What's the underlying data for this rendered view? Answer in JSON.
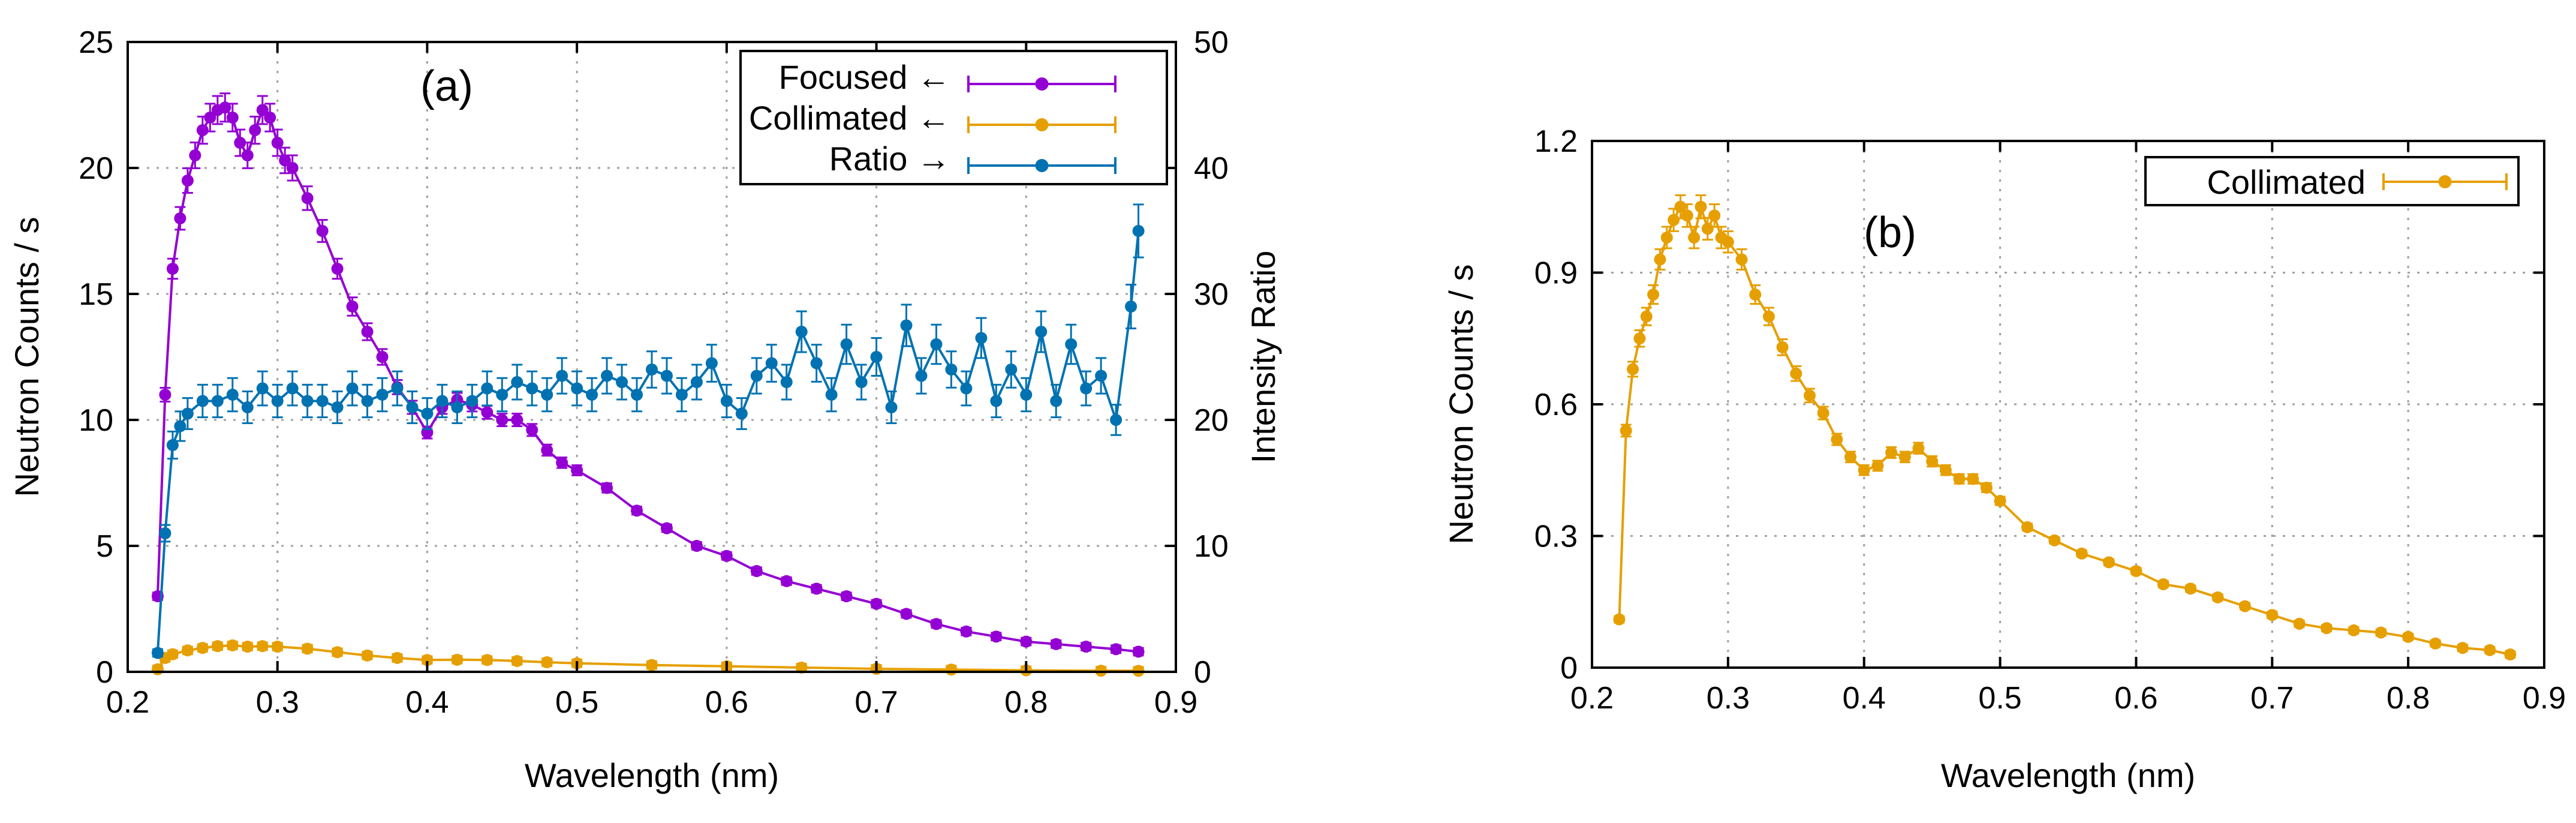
{
  "chart_data": [
    {
      "type": "line",
      "panel_label": "(a)",
      "xlabel": "Wavelength (nm)",
      "ylabel": "Neutron Counts / s",
      "y2label": "Intensity Ratio",
      "xlim": [
        0.2,
        0.9
      ],
      "ylim": [
        0,
        25
      ],
      "y2lim": [
        0,
        50
      ],
      "xticks": [
        "0.2",
        "0.3",
        "0.4",
        "0.5",
        "0.6",
        "0.7",
        "0.8",
        "0.9"
      ],
      "yticks": [
        "0",
        "5",
        "10",
        "15",
        "20",
        "25"
      ],
      "y2ticks": [
        "0",
        "10",
        "20",
        "30",
        "40",
        "50"
      ],
      "grid": true,
      "legend_position": "top-right",
      "colors": {
        "focused": "#9400d3",
        "collimated": "#e69f00",
        "ratio": "#0072b2"
      },
      "series": [
        {
          "name": "Focused ←",
          "axis": "left",
          "key": "focused",
          "x": [
            0.22,
            0.225,
            0.23,
            0.235,
            0.24,
            0.245,
            0.25,
            0.255,
            0.26,
            0.265,
            0.27,
            0.275,
            0.28,
            0.285,
            0.29,
            0.295,
            0.3,
            0.305,
            0.31,
            0.32,
            0.33,
            0.34,
            0.35,
            0.36,
            0.37,
            0.38,
            0.39,
            0.4,
            0.41,
            0.42,
            0.43,
            0.44,
            0.45,
            0.46,
            0.47,
            0.48,
            0.49,
            0.5,
            0.52,
            0.54,
            0.56,
            0.58,
            0.6,
            0.62,
            0.64,
            0.66,
            0.68,
            0.7,
            0.72,
            0.74,
            0.76,
            0.78,
            0.8,
            0.82,
            0.84,
            0.86,
            0.875
          ],
          "y": [
            3.0,
            11.0,
            16.0,
            18.0,
            19.5,
            20.5,
            21.5,
            22.0,
            22.3,
            22.4,
            22.0,
            21.0,
            20.5,
            21.5,
            22.3,
            22.0,
            21.0,
            20.3,
            20.0,
            18.8,
            17.5,
            16.0,
            14.5,
            13.5,
            12.5,
            11.3,
            10.5,
            9.5,
            10.5,
            10.8,
            10.6,
            10.3,
            10.0,
            10.0,
            9.6,
            8.8,
            8.3,
            8.0,
            7.3,
            6.4,
            5.7,
            5.0,
            4.6,
            4.0,
            3.6,
            3.3,
            3.0,
            2.7,
            2.3,
            1.9,
            1.6,
            1.4,
            1.2,
            1.1,
            1.0,
            0.9,
            0.8
          ]
        },
        {
          "name": "Collimated ←",
          "axis": "left",
          "key": "collimated",
          "x": [
            0.22,
            0.225,
            0.23,
            0.24,
            0.25,
            0.26,
            0.27,
            0.28,
            0.29,
            0.3,
            0.32,
            0.34,
            0.36,
            0.38,
            0.4,
            0.42,
            0.44,
            0.46,
            0.48,
            0.5,
            0.55,
            0.6,
            0.65,
            0.7,
            0.75,
            0.8,
            0.85,
            0.875
          ],
          "y": [
            0.1,
            0.55,
            0.7,
            0.85,
            0.95,
            1.02,
            1.05,
            1.0,
            1.02,
            1.0,
            0.92,
            0.78,
            0.65,
            0.55,
            0.47,
            0.48,
            0.47,
            0.43,
            0.38,
            0.34,
            0.27,
            0.22,
            0.17,
            0.12,
            0.09,
            0.06,
            0.045,
            0.04
          ]
        },
        {
          "name": "Ratio →",
          "axis": "right",
          "key": "ratio",
          "x": [
            0.22,
            0.225,
            0.23,
            0.235,
            0.24,
            0.25,
            0.26,
            0.27,
            0.28,
            0.29,
            0.3,
            0.31,
            0.32,
            0.33,
            0.34,
            0.35,
            0.36,
            0.37,
            0.38,
            0.39,
            0.4,
            0.41,
            0.42,
            0.43,
            0.44,
            0.45,
            0.46,
            0.47,
            0.48,
            0.49,
            0.5,
            0.51,
            0.52,
            0.53,
            0.54,
            0.55,
            0.56,
            0.57,
            0.58,
            0.59,
            0.6,
            0.61,
            0.62,
            0.63,
            0.64,
            0.65,
            0.66,
            0.67,
            0.68,
            0.69,
            0.7,
            0.71,
            0.72,
            0.73,
            0.74,
            0.75,
            0.76,
            0.77,
            0.78,
            0.79,
            0.8,
            0.81,
            0.82,
            0.83,
            0.84,
            0.85,
            0.86,
            0.87,
            0.875
          ],
          "y": [
            1.5,
            11.0,
            18.0,
            19.5,
            20.5,
            21.5,
            21.5,
            22.0,
            21.0,
            22.5,
            21.5,
            22.5,
            21.5,
            21.5,
            21.0,
            22.5,
            21.5,
            22.0,
            22.5,
            21.0,
            20.5,
            21.5,
            21.0,
            21.5,
            22.5,
            22.0,
            23.0,
            22.5,
            22.0,
            23.5,
            22.5,
            22.0,
            23.5,
            23.0,
            22.0,
            24.0,
            23.5,
            22.0,
            23.0,
            24.5,
            21.5,
            20.5,
            23.5,
            24.5,
            23.0,
            27.0,
            24.5,
            22.0,
            26.0,
            23.0,
            25.0,
            21.0,
            27.5,
            23.5,
            26.0,
            24.0,
            22.5,
            26.5,
            21.5,
            24.0,
            22.0,
            27.0,
            21.5,
            26.0,
            22.5,
            23.5,
            20.0,
            29.0,
            35.0
          ]
        }
      ]
    },
    {
      "type": "line",
      "panel_label": "(b)",
      "xlabel": "Wavelength (nm)",
      "ylabel": "Neutron Counts / s",
      "xlim": [
        0.2,
        0.9
      ],
      "ylim": [
        0,
        1.2
      ],
      "xticks": [
        "0.2",
        "0.3",
        "0.4",
        "0.5",
        "0.6",
        "0.7",
        "0.8",
        "0.9"
      ],
      "yticks": [
        "0",
        "0.3",
        "0.6",
        "0.9",
        "1.2"
      ],
      "grid": true,
      "legend_position": "top-right",
      "colors": {
        "collimated": "#e69f00"
      },
      "series": [
        {
          "name": "Collimated",
          "axis": "left",
          "key": "collimated",
          "x": [
            0.22,
            0.225,
            0.23,
            0.235,
            0.24,
            0.245,
            0.25,
            0.255,
            0.26,
            0.265,
            0.27,
            0.275,
            0.28,
            0.285,
            0.29,
            0.295,
            0.3,
            0.31,
            0.32,
            0.33,
            0.34,
            0.35,
            0.36,
            0.37,
            0.38,
            0.39,
            0.4,
            0.41,
            0.42,
            0.43,
            0.44,
            0.45,
            0.46,
            0.47,
            0.48,
            0.49,
            0.5,
            0.52,
            0.54,
            0.56,
            0.58,
            0.6,
            0.62,
            0.64,
            0.66,
            0.68,
            0.7,
            0.72,
            0.74,
            0.76,
            0.78,
            0.8,
            0.82,
            0.84,
            0.86,
            0.875
          ],
          "y": [
            0.11,
            0.54,
            0.68,
            0.75,
            0.8,
            0.85,
            0.93,
            0.98,
            1.02,
            1.05,
            1.03,
            0.98,
            1.05,
            1.0,
            1.03,
            0.98,
            0.97,
            0.93,
            0.85,
            0.8,
            0.73,
            0.67,
            0.62,
            0.58,
            0.52,
            0.48,
            0.45,
            0.46,
            0.49,
            0.48,
            0.5,
            0.47,
            0.45,
            0.43,
            0.43,
            0.41,
            0.38,
            0.32,
            0.29,
            0.26,
            0.24,
            0.22,
            0.19,
            0.18,
            0.16,
            0.14,
            0.12,
            0.1,
            0.09,
            0.085,
            0.08,
            0.07,
            0.055,
            0.045,
            0.04,
            0.03
          ]
        }
      ]
    }
  ]
}
